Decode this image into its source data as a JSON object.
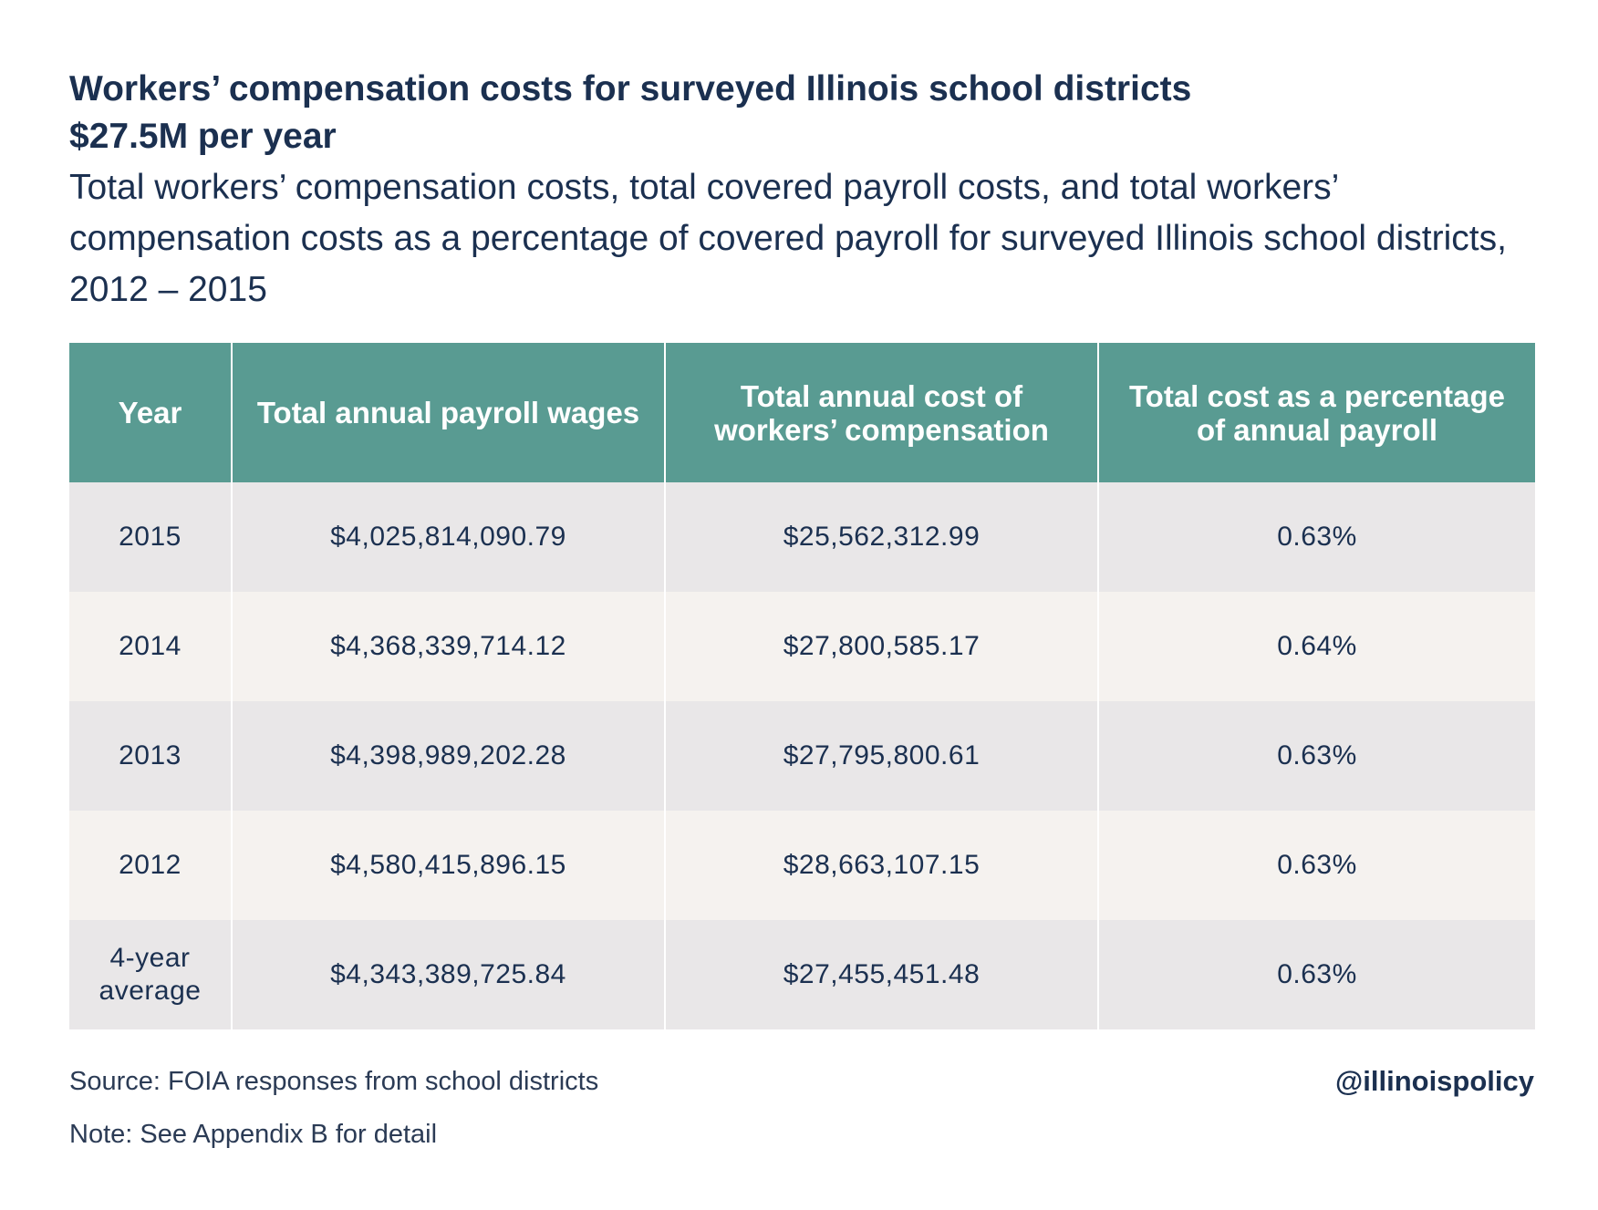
{
  "chart_data": {
    "type": "table",
    "title_line1": "Workers’ compensation costs for surveyed Illinois school districts",
    "title_line2": "$27.5M per year",
    "subtitle": "Total workers’ compensation costs, total covered payroll costs, and total workers’ compensation costs as a percentage of covered payroll for surveyed Illinois school districts, 2012 – 2015",
    "columns": [
      "Year",
      "Total annual payroll wages",
      "Total annual cost of workers’ compensation",
      "Total cost as a percentage of annual payroll"
    ],
    "rows": [
      {
        "year": "2015",
        "payroll": "$4,025,814,090.79",
        "cost": "$25,562,312.99",
        "percent": "0.63%"
      },
      {
        "year": "2014",
        "payroll": "$4,368,339,714.12",
        "cost": "$27,800,585.17",
        "percent": "0.64%"
      },
      {
        "year": "2013",
        "payroll": "$4,398,989,202.28",
        "cost": "$27,795,800.61",
        "percent": "0.63%"
      },
      {
        "year": "2012",
        "payroll": "$4,580,415,896.15",
        "cost": "$28,663,107.15",
        "percent": "0.63%"
      },
      {
        "year": "4-year average",
        "payroll": "$4,343,389,725.84",
        "cost": "$27,455,451.48",
        "percent": "0.63%"
      }
    ],
    "source": "Source: FOIA responses from school districts",
    "note": "Note: See Appendix B for detail"
  },
  "footer": {
    "handle": "@illinoispolicy"
  },
  "colors": {
    "header_bg": "#599b92",
    "row_odd": "#e9e7e8",
    "row_even": "#f5f2ef",
    "text": "#1b3050"
  }
}
